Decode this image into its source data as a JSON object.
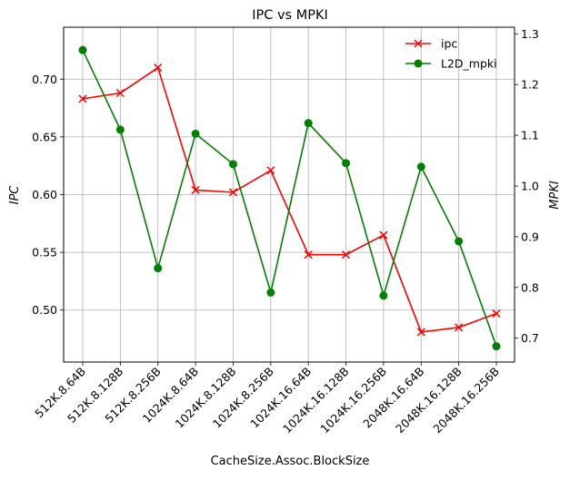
{
  "chart_data": {
    "type": "line",
    "title": "IPC vs MPKI",
    "xlabel": "CacheSize.Assoc.BlockSize",
    "ylabel": "IPC",
    "y2label": "MPKI",
    "categories": [
      "512K.8.64B",
      "512K.8.128B",
      "512K.8.256B",
      "1024K.8.64B",
      "1024K.8.128B",
      "1024K.8.256B",
      "1024K.16.64B",
      "1024K.16.128B",
      "1024K.16.256B",
      "2048K.16.64B",
      "2048K.16.128B",
      "2048K.16.256B"
    ],
    "ylim": [
      0.455,
      0.745
    ],
    "y2lim": [
      0.653,
      1.313
    ],
    "yticks": [
      "0.50",
      "0.55",
      "0.60",
      "0.65",
      "0.70"
    ],
    "y2ticks": [
      "0.7",
      "0.8",
      "0.9",
      "1.0",
      "1.1",
      "1.2",
      "1.3"
    ],
    "grid": true,
    "legend_position": "top-right",
    "series": [
      {
        "name": "ipc",
        "axis": "left",
        "color": "#ff0000",
        "marker": "x",
        "values": [
          0.683,
          0.688,
          0.71,
          0.604,
          0.602,
          0.621,
          0.548,
          0.548,
          0.565,
          0.481,
          0.485,
          0.497
        ]
      },
      {
        "name": "L2D_mpki",
        "axis": "right",
        "color": "#008000",
        "marker": "circle",
        "values": [
          1.268,
          1.111,
          0.838,
          1.103,
          1.043,
          0.79,
          1.124,
          1.045,
          0.784,
          1.038,
          0.891,
          0.684
        ]
      }
    ]
  }
}
